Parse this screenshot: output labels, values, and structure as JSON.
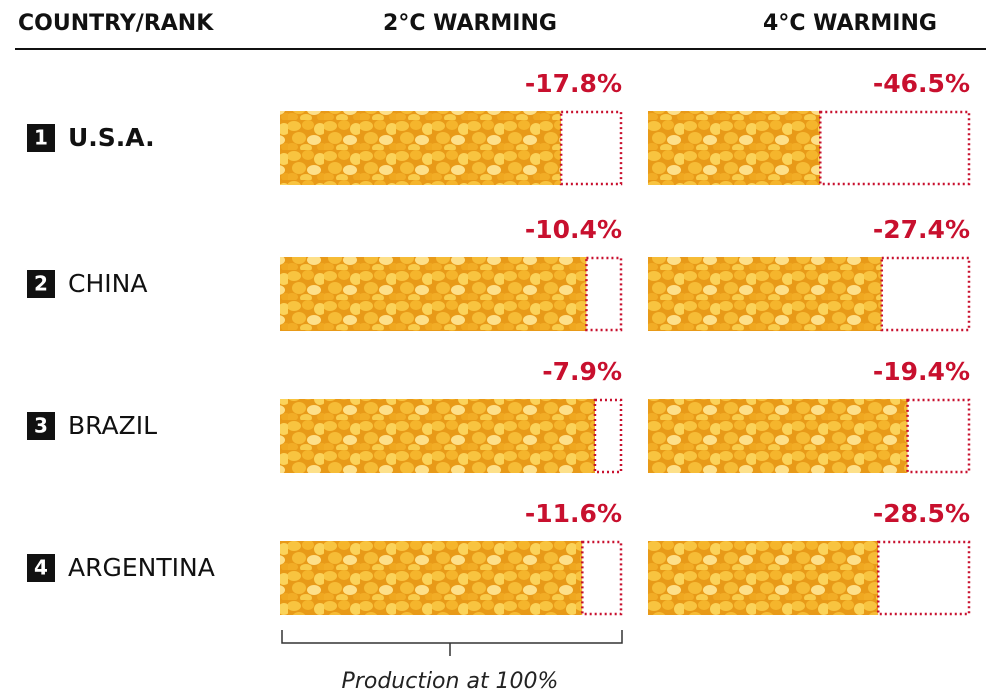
{
  "chart_data": {
    "type": "bar",
    "column_header": "COUNTRY/RANK",
    "categories": [
      "U.S.A.",
      "CHINA",
      "BRAZIL",
      "ARGENTINA"
    ],
    "ranks": [
      1,
      2,
      3,
      4
    ],
    "series": [
      {
        "name": "2°C WARMING",
        "values": [
          -17.8,
          -10.4,
          -7.9,
          -11.6
        ],
        "value_labels": [
          "-17.8%",
          "-10.4%",
          "-7.9%",
          "-11.6%"
        ]
      },
      {
        "name": "4°C WARMING",
        "values": [
          -46.5,
          -27.4,
          -19.4,
          -28.5
        ],
        "value_labels": [
          "-46.5%",
          "-27.4%",
          "-19.4%",
          "-28.5%"
        ]
      }
    ],
    "annotation": "Production at 100%",
    "color": "#f0a820",
    "loss_color": "#c8102e"
  }
}
